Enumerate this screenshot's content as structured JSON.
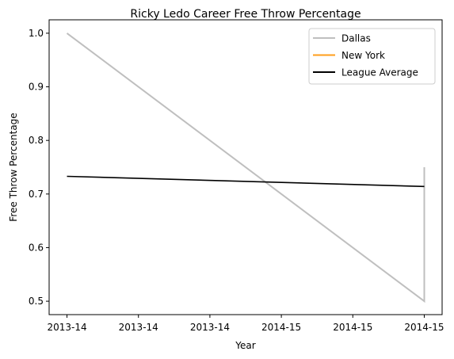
{
  "chart_data": {
    "type": "line",
    "title": "Ricky Ledo Career Free Throw Percentage",
    "xlabel": "Year",
    "ylabel": "Free Throw Percentage",
    "xlim": [
      -0.05,
      1.05
    ],
    "ylim": [
      0.475,
      1.025
    ],
    "x_ticks": [
      {
        "value": 0.0,
        "label": "2013-14"
      },
      {
        "value": 0.2,
        "label": "2013-14"
      },
      {
        "value": 0.4,
        "label": "2013-14"
      },
      {
        "value": 0.6,
        "label": "2014-15"
      },
      {
        "value": 0.8,
        "label": "2014-15"
      },
      {
        "value": 1.0,
        "label": "2014-15"
      }
    ],
    "y_ticks": [
      {
        "value": 0.5,
        "label": "0.5"
      },
      {
        "value": 0.6,
        "label": "0.6"
      },
      {
        "value": 0.7,
        "label": "0.7"
      },
      {
        "value": 0.8,
        "label": "0.8"
      },
      {
        "value": 0.9,
        "label": "0.9"
      },
      {
        "value": 1.0,
        "label": "1.0"
      }
    ],
    "grid": false,
    "legend_position": "top-right",
    "series": [
      {
        "name": "Dallas",
        "color": "#bfbfbf",
        "x": [
          0,
          1,
          1
        ],
        "y": [
          1.0,
          0.5,
          0.75
        ]
      },
      {
        "name": "New York",
        "color": "#ff9e1b",
        "x": [],
        "y": []
      },
      {
        "name": "League Average",
        "color": "#000000",
        "x": [
          0,
          1
        ],
        "y": [
          0.733,
          0.714
        ]
      }
    ]
  }
}
